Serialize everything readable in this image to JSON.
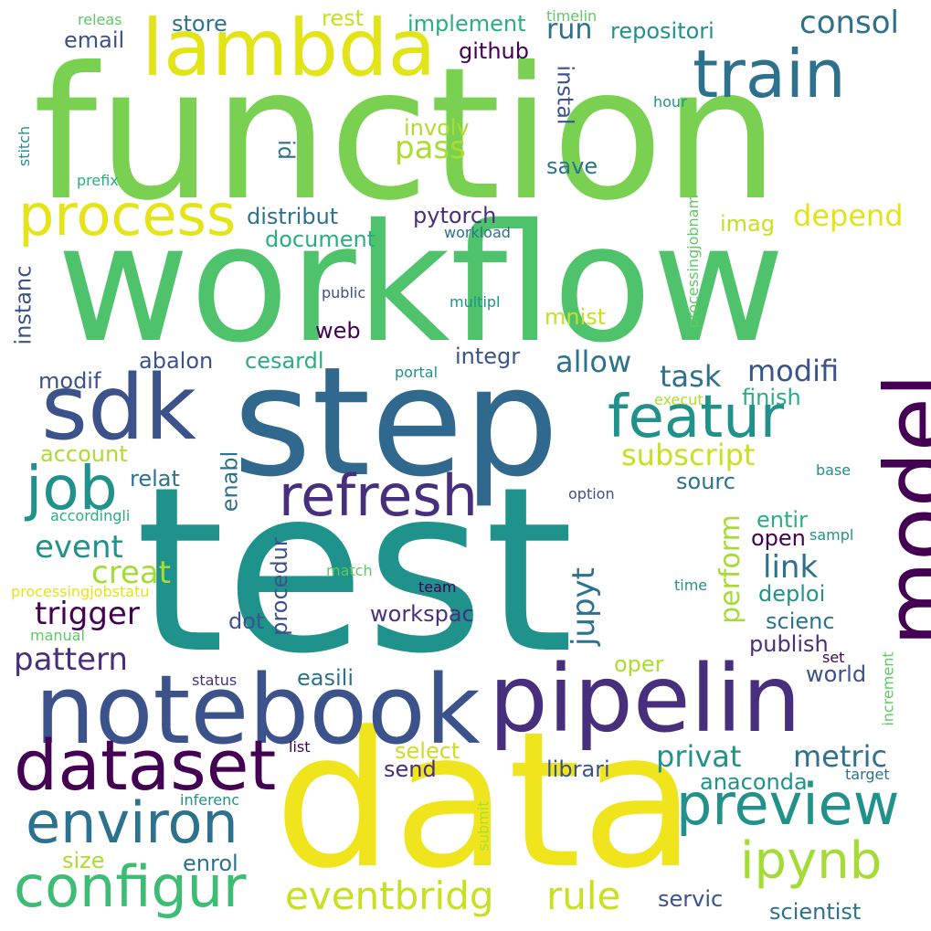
{
  "words": [
    "function",
    "workflow",
    "step",
    "test",
    "data",
    "notebook",
    "pipelin",
    "sdk",
    "model",
    "lambda",
    "train",
    "process",
    "dataset",
    "featur",
    "refresh",
    "job",
    "preview",
    "environ",
    "configur",
    "ipynb",
    "eventbridg",
    "rule",
    "consol",
    "depend",
    "modifi",
    "allow",
    "task",
    "trigger",
    "pattern",
    "event",
    "creat",
    "link",
    "perform",
    "subscript",
    "jupyt",
    "privat",
    "metric",
    "anaconda",
    "scientist",
    "servic",
    "enrol",
    "size",
    "select",
    "send",
    "librari",
    "pass",
    "run",
    "repositori",
    "implement",
    "rest",
    "store",
    "email",
    "github",
    "instal",
    "involv",
    "id",
    "save",
    "distribut",
    "document",
    "pytorch",
    "imag",
    "mnist",
    "web",
    "integr",
    "abalon",
    "cesardl",
    "modif",
    "account",
    "relat",
    "enabl",
    "sourc",
    "finish",
    "entir",
    "open",
    "deploi",
    "scienc",
    "publish",
    "world",
    "oper",
    "workspac",
    "dot",
    "procedur",
    "easili",
    "instanc",
    "releas",
    "timelin",
    "hour",
    "stitch",
    "prefix",
    "workload",
    "public",
    "multipl",
    "processingjobnam",
    "portal",
    "execut",
    "base",
    "option",
    "accordingli",
    "sampl",
    "match",
    "team",
    "processingjobstatu",
    "manual",
    "time",
    "status",
    "set",
    "increment",
    "list",
    "target",
    "inferenc",
    "submit"
  ],
  "colors": {
    "background": "#ffffff",
    "palette": [
      "#440154",
      "#472f7d",
      "#3b528b",
      "#2c728e",
      "#21918c",
      "#28ae80",
      "#5ec962",
      "#addc30",
      "#fde725"
    ]
  }
}
